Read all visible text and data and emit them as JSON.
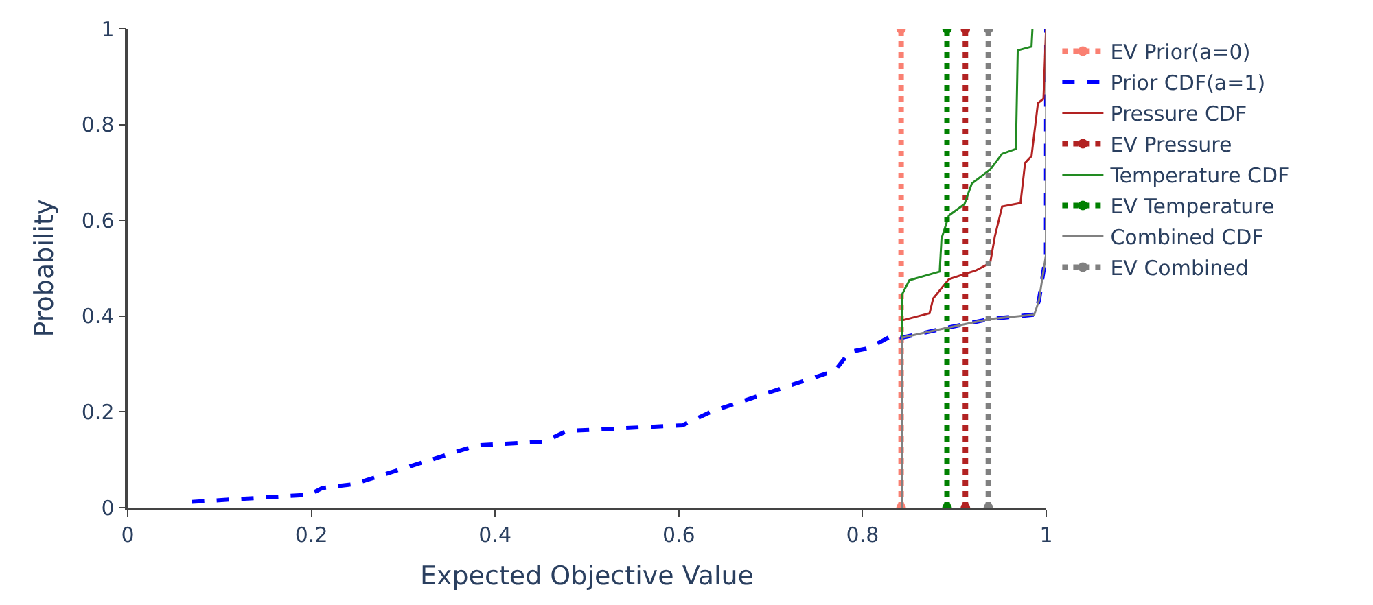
{
  "chart_data": {
    "type": "line",
    "xlabel": "Expected Objective Value",
    "ylabel": "Probability",
    "xlim": [
      0,
      1
    ],
    "ylim": [
      0,
      1
    ],
    "xticks": [
      0,
      0.2,
      0.4,
      0.6,
      0.8,
      1
    ],
    "yticks": [
      0,
      0.2,
      0.4,
      0.6,
      0.8,
      1
    ],
    "legend": "top right",
    "series": [
      {
        "name": "EV Prior(a=0)",
        "color": "#fa8072",
        "line_style": "dotted",
        "marker": "circle",
        "x": [
          0.842,
          0.842
        ],
        "values": [
          0,
          1
        ]
      },
      {
        "name": "Prior CDF(a=1)",
        "color": "#0000ff",
        "line_style": "dashed",
        "marker": "none",
        "x": [
          0.07,
          0.198,
          0.212,
          0.246,
          0.38,
          0.454,
          0.478,
          0.604,
          0.636,
          0.77,
          0.786,
          0.807,
          0.833,
          0.843,
          0.888,
          0.939,
          0.987,
          0.992,
          0.9997,
          1
        ],
        "values": [
          0.012,
          0.027,
          0.041,
          0.049,
          0.13,
          0.138,
          0.16,
          0.172,
          0.201,
          0.286,
          0.325,
          0.333,
          0.36,
          0.355,
          0.374,
          0.394,
          0.403,
          0.432,
          0.528,
          1
        ]
      },
      {
        "name": "Pressure CDF",
        "color": "#b22222",
        "line_style": "solid",
        "marker": "none",
        "x": [
          0.843,
          0.843,
          0.873,
          0.877,
          0.894,
          0.924,
          0.939,
          0.944,
          0.952,
          0.972,
          0.977,
          0.984,
          0.991,
          0.997,
          0.9997,
          1
        ],
        "values": [
          0,
          0.391,
          0.406,
          0.437,
          0.477,
          0.496,
          0.511,
          0.566,
          0.629,
          0.636,
          0.72,
          0.734,
          0.845,
          0.854,
          0.994,
          1
        ]
      },
      {
        "name": "EV Pressure",
        "color": "#b22222",
        "line_style": "dotted",
        "marker": "circle",
        "x": [
          0.912,
          0.912
        ],
        "values": [
          0,
          1
        ]
      },
      {
        "name": "Temperature CDF",
        "color": "#228b22",
        "line_style": "solid",
        "marker": "none",
        "x": [
          0.843,
          0.843,
          0.851,
          0.884,
          0.886,
          0.894,
          0.911,
          0.919,
          0.939,
          0.952,
          0.967,
          0.969,
          0.984,
          0.985
        ],
        "values": [
          0,
          0.445,
          0.475,
          0.493,
          0.562,
          0.61,
          0.634,
          0.677,
          0.706,
          0.739,
          0.749,
          0.955,
          0.963,
          1
        ]
      },
      {
        "name": "EV Temperature",
        "color": "#008000",
        "line_style": "dotted",
        "marker": "circle",
        "x": [
          0.892,
          0.892
        ],
        "values": [
          0,
          1
        ]
      },
      {
        "name": "Combined CDF",
        "color": "#808080",
        "line_style": "solid",
        "marker": "none",
        "x": [
          0.843,
          0.843,
          0.888,
          0.939,
          0.987,
          0.992,
          0.9997,
          1
        ],
        "values": [
          0,
          0.355,
          0.374,
          0.394,
          0.403,
          0.432,
          0.528,
          1
        ]
      },
      {
        "name": "EV Combined",
        "color": "#808080",
        "line_style": "dotted",
        "marker": "circle",
        "x": [
          0.937,
          0.937
        ],
        "values": [
          0,
          1
        ]
      }
    ]
  }
}
